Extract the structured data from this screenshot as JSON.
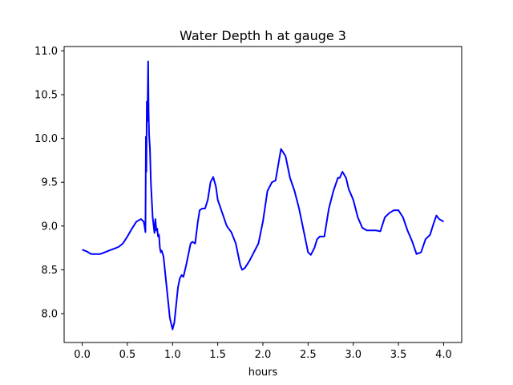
{
  "chart_data": {
    "type": "line",
    "title": "Water Depth h at gauge 3",
    "xlabel": "hours",
    "ylabel": "",
    "xlim": [
      -0.2,
      4.2
    ],
    "ylim": [
      7.67,
      11.05
    ],
    "xticks": [
      0.0,
      0.5,
      1.0,
      1.5,
      2.0,
      2.5,
      3.0,
      3.5,
      4.0
    ],
    "xtick_labels": [
      "0.0",
      "0.5",
      "1.0",
      "1.5",
      "2.0",
      "2.5",
      "3.0",
      "3.5",
      "4.0"
    ],
    "yticks": [
      8.0,
      8.5,
      9.0,
      9.5,
      10.0,
      10.5,
      11.0
    ],
    "ytick_labels": [
      "8.0",
      "8.5",
      "9.0",
      "9.5",
      "10.0",
      "10.5",
      "11.0"
    ],
    "grid": false,
    "series": [
      {
        "color": "#0000ff",
        "x": [
          0.0,
          0.05,
          0.1,
          0.15,
          0.2,
          0.25,
          0.3,
          0.35,
          0.4,
          0.45,
          0.5,
          0.55,
          0.6,
          0.65,
          0.68,
          0.69,
          0.7,
          0.705,
          0.71,
          0.715,
          0.72,
          0.725,
          0.73,
          0.735,
          0.74,
          0.75,
          0.76,
          0.78,
          0.8,
          0.81,
          0.82,
          0.83,
          0.84,
          0.85,
          0.86,
          0.87,
          0.88,
          0.9,
          0.92,
          0.95,
          0.97,
          1.0,
          1.02,
          1.04,
          1.06,
          1.08,
          1.1,
          1.12,
          1.15,
          1.18,
          1.2,
          1.22,
          1.25,
          1.28,
          1.3,
          1.33,
          1.36,
          1.39,
          1.42,
          1.45,
          1.48,
          1.5,
          1.55,
          1.6,
          1.65,
          1.7,
          1.75,
          1.77,
          1.8,
          1.85,
          1.9,
          1.95,
          2.0,
          2.05,
          2.1,
          2.14,
          2.17,
          2.2,
          2.25,
          2.3,
          2.35,
          2.4,
          2.45,
          2.5,
          2.53,
          2.57,
          2.6,
          2.63,
          2.68,
          2.73,
          2.78,
          2.83,
          2.85,
          2.88,
          2.92,
          2.95,
          3.0,
          3.05,
          3.1,
          3.15,
          3.2,
          3.25,
          3.3,
          3.35,
          3.4,
          3.45,
          3.5,
          3.55,
          3.6,
          3.65,
          3.7,
          3.75,
          3.8,
          3.85,
          3.88,
          3.92,
          3.95,
          4.0
        ],
        "y": [
          8.73,
          8.71,
          8.68,
          8.68,
          8.68,
          8.7,
          8.72,
          8.74,
          8.76,
          8.8,
          8.88,
          8.97,
          9.05,
          9.08,
          9.05,
          9.0,
          8.93,
          10.02,
          9.62,
          10.42,
          10.2,
          10.46,
          10.88,
          10.3,
          10.05,
          9.88,
          9.5,
          9.1,
          8.92,
          9.08,
          8.95,
          8.97,
          8.88,
          8.9,
          8.75,
          8.7,
          8.72,
          8.65,
          8.45,
          8.15,
          7.95,
          7.82,
          7.9,
          8.1,
          8.3,
          8.4,
          8.44,
          8.42,
          8.55,
          8.7,
          8.8,
          8.82,
          8.8,
          9.05,
          9.18,
          9.2,
          9.2,
          9.3,
          9.5,
          9.56,
          9.45,
          9.3,
          9.15,
          9.0,
          8.93,
          8.8,
          8.55,
          8.5,
          8.52,
          8.6,
          8.7,
          8.8,
          9.05,
          9.4,
          9.5,
          9.52,
          9.7,
          9.88,
          9.8,
          9.55,
          9.4,
          9.2,
          8.95,
          8.7,
          8.67,
          8.75,
          8.85,
          8.88,
          8.88,
          9.2,
          9.4,
          9.55,
          9.55,
          9.62,
          9.55,
          9.42,
          9.3,
          9.1,
          8.98,
          8.95,
          8.95,
          8.95,
          8.94,
          9.1,
          9.15,
          9.18,
          9.18,
          9.1,
          8.95,
          8.83,
          8.68,
          8.7,
          8.85,
          8.9,
          9.0,
          9.12,
          9.08,
          9.05
        ]
      }
    ]
  }
}
